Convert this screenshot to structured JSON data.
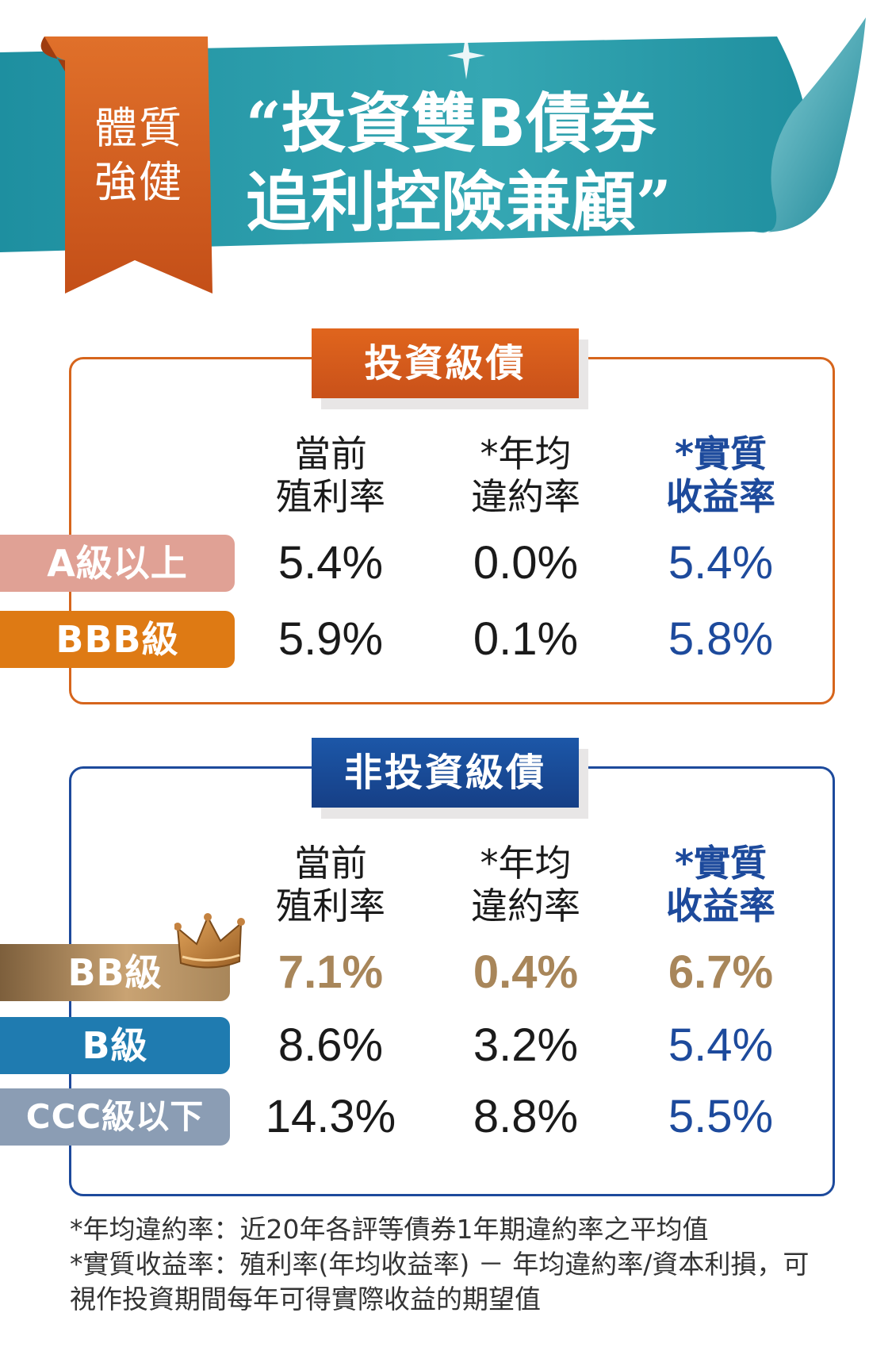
{
  "ribbon": {
    "line1": "體質",
    "line2": "強健"
  },
  "headline": {
    "open_quote": "“",
    "line1": "投資雙B債券",
    "line2": "追利控險兼顧",
    "close_quote": "”"
  },
  "colors": {
    "banner_teal": "#1e98a6",
    "ribbon_orange": "#d15a1c",
    "investment_grade": "#d6651c",
    "high_yield": "#1d4a9c",
    "net_yield_text": "#1d4a9c",
    "highlight_gold": "#a8865a"
  },
  "investment_grade": {
    "title": "投資級債",
    "columns": [
      {
        "line1": "當前",
        "line2": "殖利率"
      },
      {
        "line1": "*年均",
        "line2": "違約率"
      },
      {
        "line1": "*實質",
        "line2": "收益率"
      }
    ],
    "rows": [
      {
        "label": "A級以上",
        "color": "#e0a195",
        "values": [
          "5.4%",
          "0.0%",
          "5.4%"
        ]
      },
      {
        "label": "BBB級",
        "color": "#de7a14",
        "values": [
          "5.9%",
          "0.1%",
          "5.8%"
        ]
      }
    ]
  },
  "high_yield": {
    "title": "非投資級債",
    "columns": [
      {
        "line1": "當前",
        "line2": "殖利率"
      },
      {
        "line1": "*年均",
        "line2": "違約率"
      },
      {
        "line1": "*實質",
        "line2": "收益率"
      }
    ],
    "rows": [
      {
        "label": "BB級",
        "color": "#b08a5e",
        "values": [
          "7.1%",
          "0.4%",
          "6.7%"
        ],
        "icon": "crown-icon"
      },
      {
        "label": "B級",
        "color": "#1f7bb0",
        "values": [
          "8.6%",
          "3.2%",
          "5.4%"
        ]
      },
      {
        "label": "CCC級以下",
        "color": "#8b9db4",
        "values": [
          "14.3%",
          "8.8%",
          "5.5%"
        ]
      }
    ]
  },
  "notes": [
    "*年均違約率：近20年各評等債券1年期違約率之平均值",
    "*實質收益率：殖利率(年均收益率) － 年均違約率/資本利損，可",
    "視作投資期間每年可得實際收益的期望值"
  ]
}
